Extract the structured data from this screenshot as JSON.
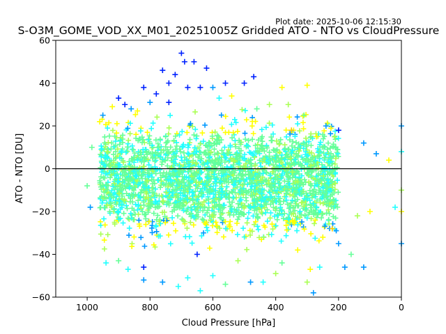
{
  "chart_data": {
    "type": "scatter",
    "title": "S-O3M_GOME_VOD_XX_M01_20251005Z Gridded ATO - NTO vs CloudPressure",
    "subtitle": "Plot date: 2025-10-06 12:15:30",
    "xlabel": "Cloud Pressure [hPa]",
    "ylabel": "ATO - NTO [DU]",
    "xlim": [
      1100,
      0
    ],
    "ylim": [
      -60,
      60
    ],
    "x_inverted": true,
    "xticks": [
      1000,
      800,
      600,
      400,
      200,
      0
    ],
    "yticks": [
      -60,
      -40,
      -20,
      0,
      20,
      40,
      60
    ],
    "reference_line_y": 0,
    "marker": "+",
    "colors": [
      "#0022ff",
      "#0099ff",
      "#22ffff",
      "#66ff99",
      "#aaff55",
      "#ffff00",
      "#ffcc00"
    ],
    "grid": false,
    "points": [
      {
        "x": 950,
        "y": 25,
        "c": 1
      },
      {
        "x": 900,
        "y": 33,
        "c": 0
      },
      {
        "x": 880,
        "y": 30,
        "c": 0
      },
      {
        "x": 860,
        "y": 28,
        "c": 1
      },
      {
        "x": 820,
        "y": 38,
        "c": 0
      },
      {
        "x": 780,
        "y": 35,
        "c": 0
      },
      {
        "x": 760,
        "y": 46,
        "c": 0
      },
      {
        "x": 740,
        "y": 40,
        "c": 0
      },
      {
        "x": 720,
        "y": 44,
        "c": 0
      },
      {
        "x": 700,
        "y": 54,
        "c": 0
      },
      {
        "x": 690,
        "y": 50,
        "c": 0
      },
      {
        "x": 660,
        "y": 50,
        "c": 0
      },
      {
        "x": 640,
        "y": 38,
        "c": 0
      },
      {
        "x": 620,
        "y": 47,
        "c": 0
      },
      {
        "x": 600,
        "y": 38,
        "c": 1
      },
      {
        "x": 560,
        "y": 40,
        "c": 0
      },
      {
        "x": 540,
        "y": 34,
        "c": 5
      },
      {
        "x": 500,
        "y": 40,
        "c": 0
      },
      {
        "x": 470,
        "y": 43,
        "c": 0
      },
      {
        "x": 380,
        "y": 38,
        "c": 5
      },
      {
        "x": 300,
        "y": 39,
        "c": 5
      },
      {
        "x": 420,
        "y": 30,
        "c": 4
      },
      {
        "x": 360,
        "y": 30,
        "c": 4
      },
      {
        "x": 200,
        "y": 18,
        "c": 0
      },
      {
        "x": 120,
        "y": 12,
        "c": 1
      },
      {
        "x": 80,
        "y": 7,
        "c": 1
      },
      {
        "x": 40,
        "y": 4,
        "c": 5
      },
      {
        "x": 0,
        "y": 20,
        "c": 1
      },
      {
        "x": 0,
        "y": 8,
        "c": 2
      },
      {
        "x": 0,
        "y": -10,
        "c": 4
      },
      {
        "x": 0,
        "y": -20,
        "c": 5
      },
      {
        "x": 0,
        "y": -35,
        "c": 1
      },
      {
        "x": 20,
        "y": -18,
        "c": 2
      },
      {
        "x": 100,
        "y": -20,
        "c": 5
      },
      {
        "x": 140,
        "y": -22,
        "c": 4
      },
      {
        "x": 200,
        "y": -35,
        "c": 1
      },
      {
        "x": 180,
        "y": -46,
        "c": 1
      },
      {
        "x": 120,
        "y": -46,
        "c": 1
      },
      {
        "x": 160,
        "y": -40,
        "c": 3
      },
      {
        "x": 260,
        "y": -46,
        "c": 2
      },
      {
        "x": 290,
        "y": -47,
        "c": 5
      },
      {
        "x": 300,
        "y": -53,
        "c": 4
      },
      {
        "x": 280,
        "y": -58,
        "c": 1
      },
      {
        "x": 380,
        "y": -44,
        "c": 3
      },
      {
        "x": 400,
        "y": -49,
        "c": 4
      },
      {
        "x": 440,
        "y": -53,
        "c": 2
      },
      {
        "x": 480,
        "y": -53,
        "c": 1
      },
      {
        "x": 560,
        "y": -54,
        "c": 3
      },
      {
        "x": 640,
        "y": -57,
        "c": 2
      },
      {
        "x": 600,
        "y": -50,
        "c": 2
      },
      {
        "x": 680,
        "y": -51,
        "c": 2
      },
      {
        "x": 710,
        "y": -55,
        "c": 2
      },
      {
        "x": 760,
        "y": -53,
        "c": 1
      },
      {
        "x": 820,
        "y": -52,
        "c": 1
      },
      {
        "x": 820,
        "y": -46,
        "c": 0
      },
      {
        "x": 870,
        "y": -47,
        "c": 2
      },
      {
        "x": 900,
        "y": -43,
        "c": 3
      },
      {
        "x": 940,
        "y": -44,
        "c": 2
      },
      {
        "x": 990,
        "y": -18,
        "c": 1
      },
      {
        "x": 1000,
        "y": -8,
        "c": 3
      },
      {
        "x": 650,
        "y": -40,
        "c": 0
      },
      {
        "x": 520,
        "y": -43,
        "c": 4
      },
      {
        "x": 330,
        "y": -38,
        "c": 5
      },
      {
        "x": 250,
        "y": -32,
        "c": 5
      },
      {
        "x": 220,
        "y": -28,
        "c": 6
      },
      {
        "x": 240,
        "y": 20,
        "c": 1
      },
      {
        "x": 270,
        "y": 15,
        "c": 5
      },
      {
        "x": 310,
        "y": 25,
        "c": 3
      },
      {
        "x": 350,
        "y": 18,
        "c": 6
      },
      {
        "x": 460,
        "y": 28,
        "c": 3
      },
      {
        "x": 580,
        "y": 33,
        "c": 2
      },
      {
        "x": 680,
        "y": 38,
        "c": 0
      },
      {
        "x": 740,
        "y": 31,
        "c": 0
      },
      {
        "x": 800,
        "y": 31,
        "c": 1
      },
      {
        "x": 840,
        "y": 27,
        "c": 5
      },
      {
        "x": 920,
        "y": 29,
        "c": 5
      },
      {
        "x": 960,
        "y": 22,
        "c": 5
      },
      {
        "x": 985,
        "y": 10,
        "c": 3
      }
    ]
  }
}
